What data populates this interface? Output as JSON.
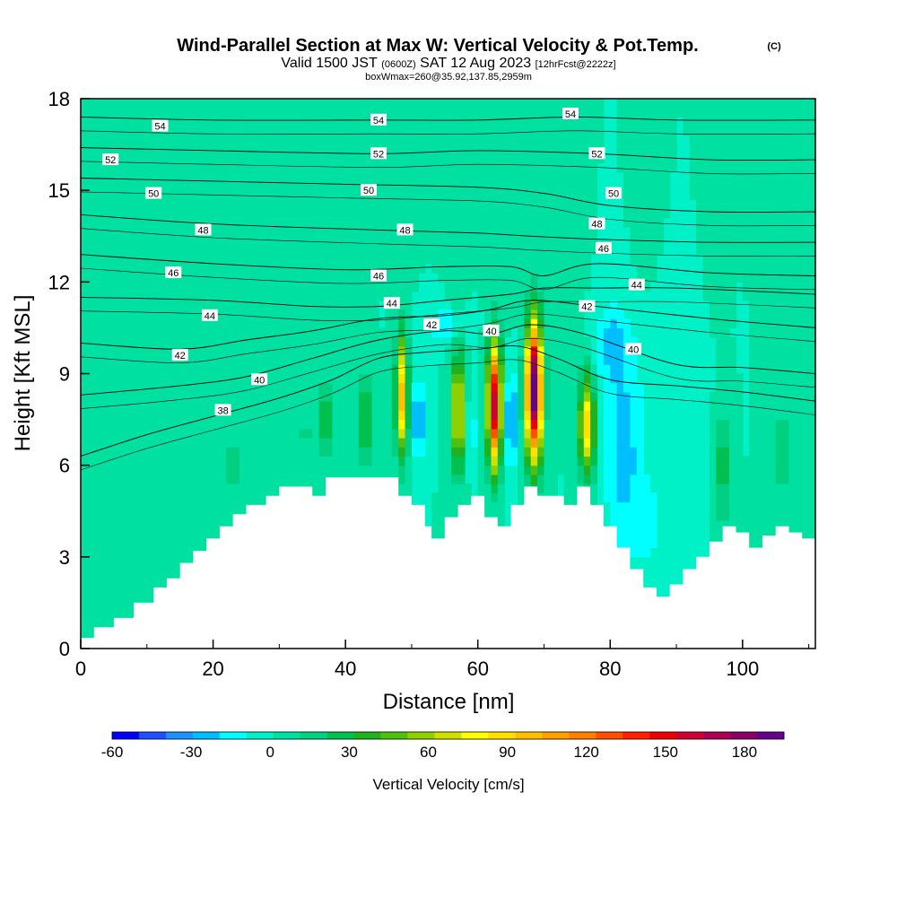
{
  "header": {
    "title": "Wind-Parallel Section at Max W: Vertical Velocity & Pot.Temp.",
    "copyright": "(C)",
    "valid_prefix": "Valid 1500 JST",
    "valid_utc": "(0600Z)",
    "valid_date": "SAT 12 Aug 2023",
    "forecast": "[12hrFcst@2222z]",
    "box_info": "boxWmax=260@35.92,137.85,2959m"
  },
  "colorbar": {
    "title": "Vertical Velocity [cm/s]",
    "tick_labels": [
      "-60",
      "-30",
      "0",
      "30",
      "60",
      "90",
      "120",
      "150",
      "180"
    ],
    "colors": [
      "#0000ff",
      "#1f4fff",
      "#1e90ff",
      "#00bfff",
      "#00ffff",
      "#00f0c8",
      "#00e0a0",
      "#00d080",
      "#00c050",
      "#20b020",
      "#50c010",
      "#90d000",
      "#d0e000",
      "#ffff00",
      "#ffe000",
      "#ffc000",
      "#ffa000",
      "#ff8000",
      "#ff5000",
      "#ff2000",
      "#ee0000",
      "#cc0033",
      "#aa0055",
      "#880066",
      "#660088"
    ],
    "range": [
      -60,
      195
    ],
    "step": 10
  },
  "chart_data": {
    "type": "heatmap",
    "title": "Wind-Parallel Section at Max W: Vertical Velocity & Pot.Temp.",
    "xlabel": "Distance [nm]",
    "ylabel": "Height [Kft MSL]",
    "xlim": [
      0,
      111
    ],
    "ylim": [
      0,
      18
    ],
    "x_ticks": [
      "0",
      "20",
      "40",
      "60",
      "80",
      "100"
    ],
    "y_ticks": [
      "0",
      "3",
      "6",
      "9",
      "12",
      "15",
      "18"
    ],
    "background_value": 0,
    "terrain": [
      [
        0,
        0.35
      ],
      [
        2,
        0.7
      ],
      [
        5,
        1.0
      ],
      [
        8,
        1.5
      ],
      [
        11,
        2.0
      ],
      [
        13,
        2.3
      ],
      [
        15,
        2.8
      ],
      [
        17,
        3.2
      ],
      [
        19,
        3.6
      ],
      [
        21,
        4.0
      ],
      [
        23,
        4.4
      ],
      [
        25,
        4.7
      ],
      [
        28,
        5.0
      ],
      [
        30,
        5.3
      ],
      [
        32,
        5.3
      ],
      [
        35,
        5.0
      ],
      [
        37,
        5.6
      ],
      [
        40,
        5.6
      ],
      [
        43,
        5.6
      ],
      [
        46,
        5.6
      ],
      [
        48,
        5.0
      ],
      [
        50,
        4.7
      ],
      [
        52,
        4.0
      ],
      [
        53,
        3.6
      ],
      [
        55,
        4.3
      ],
      [
        57,
        4.7
      ],
      [
        59,
        5.0
      ],
      [
        61,
        4.3
      ],
      [
        63,
        4.0
      ],
      [
        65,
        4.7
      ],
      [
        67,
        5.3
      ],
      [
        69,
        5.0
      ],
      [
        71,
        5.0
      ],
      [
        73,
        4.7
      ],
      [
        75,
        5.3
      ],
      [
        77,
        4.7
      ],
      [
        79,
        4.0
      ],
      [
        81,
        3.3
      ],
      [
        83,
        2.6
      ],
      [
        85,
        2.0
      ],
      [
        87,
        1.7
      ],
      [
        89,
        2.1
      ],
      [
        91,
        2.6
      ],
      [
        93,
        3.0
      ],
      [
        95,
        3.5
      ],
      [
        97,
        4.0
      ],
      [
        99,
        3.8
      ],
      [
        101,
        3.3
      ],
      [
        103,
        3.7
      ],
      [
        105,
        4.0
      ],
      [
        107,
        3.8
      ],
      [
        109,
        3.6
      ],
      [
        111,
        3.3
      ]
    ],
    "cells": [
      {
        "x": 12,
        "z": 13,
        "sx": 3.5,
        "sz": 3.5,
        "w": 8
      },
      {
        "x": 5,
        "z": 14,
        "sx": 2.5,
        "sz": 4,
        "w": 5
      },
      {
        "x": 28,
        "z": 15.5,
        "sx": 2,
        "sz": 3,
        "w": 6
      },
      {
        "x": 40,
        "z": 16,
        "sx": 1.5,
        "sz": 2.5,
        "w": 7
      },
      {
        "x": 57,
        "z": 15,
        "sx": 1.2,
        "sz": 3,
        "w": 8
      },
      {
        "x": 65,
        "z": 16,
        "sx": 1.3,
        "sz": 3,
        "w": 7
      },
      {
        "x": 75,
        "z": 15,
        "sx": 1.3,
        "sz": 3,
        "w": 8
      },
      {
        "x": 85,
        "z": 15.5,
        "sx": 1.5,
        "sz": 3,
        "w": 6
      },
      {
        "x": 96,
        "z": 15,
        "sx": 1.3,
        "sz": 3,
        "w": 7
      },
      {
        "x": 104,
        "z": 14.5,
        "sx": 1.3,
        "sz": 3,
        "w": 6
      },
      {
        "x": 23,
        "z": 6.0,
        "sx": 2.0,
        "sz": 1.5,
        "w": 12
      },
      {
        "x": 34,
        "z": 7.0,
        "sx": 1.2,
        "sz": 1.5,
        "w": 12
      },
      {
        "x": 37,
        "z": 7.5,
        "sx": 1.0,
        "sz": 1.3,
        "w": 35
      },
      {
        "x": 43,
        "z": 7.5,
        "sx": 0.9,
        "sz": 1.5,
        "w": 35
      },
      {
        "x": 48.5,
        "z": 8.3,
        "sx": 0.9,
        "sz": 1.9,
        "w": 95
      },
      {
        "x": 51,
        "z": 7.5,
        "sx": 0.7,
        "sz": 1.2,
        "w": -45
      },
      {
        "x": 57,
        "z": 7.8,
        "sx": 0.9,
        "sz": 1.9,
        "w": 80
      },
      {
        "x": 59,
        "z": 7.0,
        "sx": 0.6,
        "sz": 1.0,
        "w": -25
      },
      {
        "x": 62.5,
        "z": 8.0,
        "sx": 1.0,
        "sz": 2.0,
        "w": 160
      },
      {
        "x": 65,
        "z": 7.5,
        "sx": 0.6,
        "sz": 1.5,
        "w": -55
      },
      {
        "x": 68.5,
        "z": 8.5,
        "sx": 1.2,
        "sz": 2.2,
        "w": 195
      },
      {
        "x": 76.5,
        "z": 7.3,
        "sx": 1.2,
        "sz": 1.6,
        "w": 85
      },
      {
        "x": 82,
        "z": 6.5,
        "sx": 3.0,
        "sz": 3.5,
        "w": -25
      },
      {
        "x": 80,
        "z": 10.0,
        "sx": 2.5,
        "sz": 1.2,
        "w": -22
      },
      {
        "x": 86,
        "z": 4.0,
        "sx": 2.5,
        "sz": 1.5,
        "w": -12
      },
      {
        "x": 97,
        "z": 6.0,
        "sx": 1.2,
        "sz": 1.8,
        "w": 28
      },
      {
        "x": 106,
        "z": 6.5,
        "sx": 1.5,
        "sz": 1.8,
        "w": 15
      },
      {
        "x": 10,
        "z": 3.0,
        "sx": 3.0,
        "sz": 1.5,
        "w": 8
      },
      {
        "x": 55,
        "z": 10.6,
        "sx": 3.0,
        "sz": 0.5,
        "w": -20
      },
      {
        "x": 90,
        "z": 8.0,
        "sx": 4.0,
        "sz": 2.5,
        "w": -8
      }
    ],
    "isentropes": [
      {
        "level": 54,
        "pts": [
          [
            0,
            17.4
          ],
          [
            20,
            17.3
          ],
          [
            45,
            17.3
          ],
          [
            60,
            17.3
          ],
          [
            75,
            17.4
          ],
          [
            90,
            17.3
          ],
          [
            111,
            17.3
          ]
        ]
      },
      {
        "level": 52,
        "pts": [
          [
            0,
            16.4
          ],
          [
            20,
            16.3
          ],
          [
            45,
            16.2
          ],
          [
            60,
            16.3
          ],
          [
            78,
            16.2
          ],
          [
            95,
            16.0
          ],
          [
            111,
            16.0
          ]
        ]
      },
      {
        "level": 50,
        "pts": [
          [
            0,
            15.4
          ],
          [
            20,
            15.3
          ],
          [
            40,
            15.2
          ],
          [
            60,
            15.1
          ],
          [
            70,
            14.9
          ],
          [
            80,
            14.5
          ],
          [
            95,
            14.3
          ],
          [
            111,
            14.3
          ]
        ]
      },
      {
        "level": 48,
        "pts": [
          [
            0,
            14.2
          ],
          [
            20,
            13.9
          ],
          [
            45,
            13.7
          ],
          [
            60,
            13.6
          ],
          [
            68,
            13.5
          ],
          [
            78,
            13.4
          ],
          [
            95,
            13.3
          ],
          [
            111,
            13.3
          ]
        ]
      },
      {
        "level": 46,
        "pts": [
          [
            0,
            12.9
          ],
          [
            20,
            12.6
          ],
          [
            40,
            12.4
          ],
          [
            55,
            12.5
          ],
          [
            65,
            12.5
          ],
          [
            70,
            12.2
          ],
          [
            78,
            12.6
          ],
          [
            95,
            12.3
          ],
          [
            111,
            12.2
          ]
        ]
      },
      {
        "level": 44,
        "pts": [
          [
            0,
            11.5
          ],
          [
            20,
            11.4
          ],
          [
            35,
            11.2
          ],
          [
            45,
            11.2
          ],
          [
            55,
            11.4
          ],
          [
            65,
            11.6
          ],
          [
            70,
            11.8
          ],
          [
            78,
            11.8
          ],
          [
            90,
            11.8
          ],
          [
            111,
            11.6
          ]
        ]
      },
      {
        "level": 42,
        "pts": [
          [
            0,
            10.0
          ],
          [
            15,
            9.8
          ],
          [
            25,
            10.1
          ],
          [
            35,
            10.4
          ],
          [
            45,
            10.8
          ],
          [
            55,
            10.9
          ],
          [
            62,
            11.1
          ],
          [
            68,
            11.4
          ],
          [
            78,
            11.2
          ],
          [
            95,
            10.8
          ],
          [
            111,
            10.5
          ]
        ]
      },
      {
        "level": 40,
        "pts": [
          [
            0,
            8.3
          ],
          [
            15,
            8.6
          ],
          [
            25,
            8.9
          ],
          [
            35,
            9.5
          ],
          [
            45,
            10.1
          ],
          [
            55,
            10.4
          ],
          [
            62,
            10.3
          ],
          [
            68,
            10.6
          ],
          [
            76,
            10.3
          ],
          [
            90,
            9.3
          ],
          [
            100,
            9.2
          ],
          [
            111,
            9.0
          ]
        ]
      },
      {
        "level": 38,
        "pts": [
          [
            0,
            6.3
          ],
          [
            10,
            7.0
          ],
          [
            20,
            7.6
          ],
          [
            30,
            8.2
          ],
          [
            38,
            8.8
          ],
          [
            45,
            9.5
          ],
          [
            52,
            9.7
          ],
          [
            60,
            9.8
          ],
          [
            66,
            9.9
          ],
          [
            72,
            9.5
          ],
          [
            80,
            8.8
          ],
          [
            90,
            8.6
          ],
          [
            100,
            8.4
          ],
          [
            111,
            8.1
          ]
        ]
      }
    ],
    "contour_labels": [
      {
        "text": "54",
        "x": 12,
        "z": 17.1
      },
      {
        "text": "54",
        "x": 45,
        "z": 17.3
      },
      {
        "text": "54",
        "x": 74,
        "z": 17.5
      },
      {
        "text": "52",
        "x": 4.5,
        "z": 16.0
      },
      {
        "text": "52",
        "x": 45,
        "z": 16.2
      },
      {
        "text": "52",
        "x": 78,
        "z": 16.2
      },
      {
        "text": "50",
        "x": 11,
        "z": 14.9
      },
      {
        "text": "50",
        "x": 43.5,
        "z": 15.0
      },
      {
        "text": "50",
        "x": 80.5,
        "z": 14.9
      },
      {
        "text": "48",
        "x": 18.5,
        "z": 13.7
      },
      {
        "text": "48",
        "x": 49,
        "z": 13.7
      },
      {
        "text": "48",
        "x": 78,
        "z": 13.9
      },
      {
        "text": "46",
        "x": 14,
        "z": 12.3
      },
      {
        "text": "46",
        "x": 45,
        "z": 12.2
      },
      {
        "text": "46",
        "x": 79,
        "z": 13.1
      },
      {
        "text": "44",
        "x": 19.5,
        "z": 10.9
      },
      {
        "text": "44",
        "x": 47,
        "z": 11.3
      },
      {
        "text": "44",
        "x": 84,
        "z": 11.9
      },
      {
        "text": "42",
        "x": 15,
        "z": 9.6
      },
      {
        "text": "42",
        "x": 53,
        "z": 10.6
      },
      {
        "text": "42",
        "x": 76.5,
        "z": 11.2
      },
      {
        "text": "40",
        "x": 27,
        "z": 8.8
      },
      {
        "text": "40",
        "x": 62,
        "z": 10.4
      },
      {
        "text": "40",
        "x": 83.5,
        "z": 9.8
      },
      {
        "text": "38",
        "x": 21.5,
        "z": 7.8
      }
    ]
  }
}
